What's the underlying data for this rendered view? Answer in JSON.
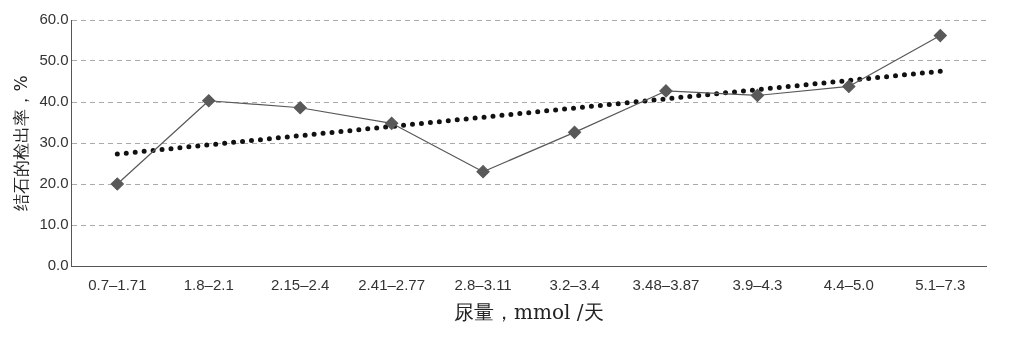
{
  "chart_data": {
    "type": "line",
    "xlabel": "尿量，mmol /天",
    "ylabel": "结石的检出率，%",
    "categories": [
      "0.7–1.71",
      "1.8–2.1",
      "2.15–2.4",
      "2.41–2.77",
      "2.8–3.11",
      "3.2–3.4",
      "3.48–3.87",
      "3.9–4.3",
      "4.4–5.0",
      "5.1–7.3"
    ],
    "series": [
      {
        "color": "#595959",
        "values": [
          20.0,
          40.3,
          38.6,
          34.8,
          23.0,
          32.6,
          42.7,
          41.6,
          43.8,
          56.2
        ]
      },
      {
        "type": "line",
        "color": "#111111",
        "x": [
          "0.7–1.71",
          "5.1–7.3"
        ],
        "values": [
          27.3,
          47.5
        ],
        "line_style": "dotted",
        "marker": "none"
      }
    ],
    "ylim": [
      0,
      60
    ],
    "yticks": [
      {
        "value": 0,
        "label": "0.0"
      },
      {
        "value": 10,
        "label": "10.0"
      },
      {
        "value": 20,
        "label": "20.0"
      },
      {
        "value": 30,
        "label": "30.0"
      },
      {
        "value": 40,
        "label": "40.0"
      },
      {
        "value": 50,
        "label": "50.0"
      },
      {
        "value": 60,
        "label": "60.0"
      }
    ],
    "grid": "y",
    "legend": false,
    "marker": "diamond"
  }
}
